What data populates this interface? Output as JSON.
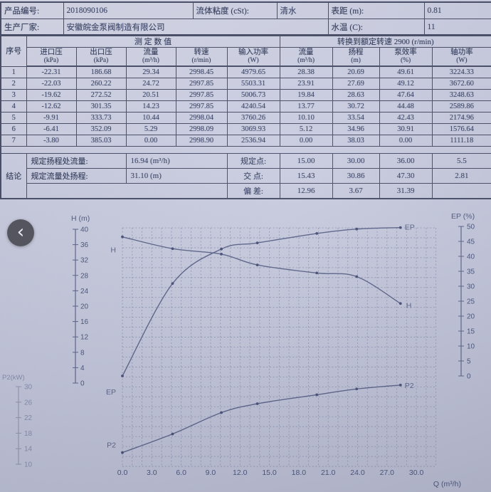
{
  "nav": {
    "back_label": "‹"
  },
  "info": {
    "r1": {
      "l1": "产品编号:",
      "v1": "2018090106",
      "l2": "流体粘度 (cSt):",
      "v2": "清水",
      "l3": "表距 (m):",
      "v3": "0.81"
    },
    "r2": {
      "l1": "生产厂家:",
      "v1": "安徽皖金泵阀制造有限公司",
      "l3": "水温 (C):",
      "v3": "11"
    }
  },
  "table": {
    "col_seq": "序号",
    "group_measured": "测  定  数  值",
    "group_converted": "转换到额定转速  2900 (r/min)",
    "headers": [
      {
        "name": "进口压",
        "unit": "(kPa)"
      },
      {
        "name": "出口压",
        "unit": "(kPa)"
      },
      {
        "name": "流量",
        "unit": "(m³/h)"
      },
      {
        "name": "转速",
        "unit": "(r/min)"
      },
      {
        "name": "输入功率",
        "unit": "(W)"
      },
      {
        "name": "流量",
        "unit": "(m³/h)"
      },
      {
        "name": "扬程",
        "unit": "(m)"
      },
      {
        "name": "泵效率",
        "unit": "(%)"
      },
      {
        "name": "轴功率",
        "unit": "(W)"
      }
    ],
    "rows": [
      [
        "1",
        "-22.31",
        "186.68",
        "29.34",
        "2998.45",
        "4979.65",
        "28.38",
        "20.69",
        "49.61",
        "3224.33"
      ],
      [
        "2",
        "-22.03",
        "260.22",
        "24.72",
        "2997.85",
        "5503.31",
        "23.91",
        "27.69",
        "49.12",
        "3672.60"
      ],
      [
        "3",
        "-19.62",
        "272.52",
        "20.51",
        "2997.85",
        "5006.73",
        "19.84",
        "28.63",
        "47.64",
        "3248.63"
      ],
      [
        "4",
        "-12.62",
        "301.35",
        "14.23",
        "2997.85",
        "4240.54",
        "13.77",
        "30.72",
        "44.48",
        "2589.86"
      ],
      [
        "5",
        "-9.91",
        "333.73",
        "10.44",
        "2998.04",
        "3760.26",
        "10.10",
        "33.54",
        "42.43",
        "2174.96"
      ],
      [
        "6",
        "-6.41",
        "352.09",
        "5.29",
        "2998.09",
        "3069.93",
        "5.12",
        "34.96",
        "30.91",
        "1576.64"
      ],
      [
        "7",
        "-3.80",
        "385.03",
        "0.00",
        "2998.90",
        "2536.94",
        "0.00",
        "38.03",
        "0.00",
        "1111.18"
      ]
    ]
  },
  "summary": {
    "side_label": "结论",
    "rows": [
      {
        "label": "规定扬程处流量:",
        "value": "16.94 (m³/h)",
        "point_label": "规定点:",
        "values": [
          "15.00",
          "30.00",
          "36.00",
          "5.5"
        ]
      },
      {
        "label": "规定流量处扬程:",
        "value": "31.10 (m)",
        "point_label": "交  点:",
        "values": [
          "15.43",
          "30.86",
          "47.30",
          "2.81"
        ]
      },
      {
        "label": "",
        "value": "",
        "point_label": "偏  差:",
        "values": [
          "12.96",
          "3.67",
          "31.39",
          ""
        ]
      }
    ]
  },
  "chart_data": {
    "type": "line",
    "title": "",
    "xlabel": "Q (m³/h)",
    "x_ticks": [
      "0.0",
      "3.0",
      "6.0",
      "9.0",
      "12.0",
      "15.0",
      "18.0",
      "21.0",
      "24.0",
      "27.0",
      "30.0"
    ],
    "xlim": [
      0,
      30
    ],
    "grid": true,
    "axes": {
      "H": {
        "label": "H (m)",
        "ticks": [
          "40",
          "36",
          "32",
          "28",
          "24",
          "20",
          "16",
          "12",
          "8",
          "4",
          "0"
        ],
        "range": [
          0,
          40
        ],
        "position": "left"
      },
      "EP": {
        "label": "EP (%)",
        "ticks": [
          "50",
          "45",
          "40",
          "35",
          "30",
          "25",
          "20",
          "15",
          "10",
          "5",
          "0"
        ],
        "range": [
          0,
          50
        ],
        "position": "right"
      },
      "P2": {
        "label": "P2(kW)",
        "ticks": [
          "30",
          "26",
          "22",
          "18",
          "14",
          "10"
        ],
        "range": [
          10,
          30
        ],
        "position": "left-lower"
      }
    },
    "series": [
      {
        "name": "H",
        "axis": "H",
        "points": [
          [
            0,
            38.03
          ],
          [
            5.12,
            34.96
          ],
          [
            10.1,
            33.54
          ],
          [
            13.77,
            30.72
          ],
          [
            19.84,
            28.63
          ],
          [
            23.91,
            27.69
          ],
          [
            28.38,
            20.69
          ]
        ]
      },
      {
        "name": "EP",
        "axis": "EP",
        "points": [
          [
            0,
            0
          ],
          [
            5.12,
            30.91
          ],
          [
            10.1,
            42.43
          ],
          [
            13.77,
            44.48
          ],
          [
            19.84,
            47.64
          ],
          [
            23.91,
            49.12
          ],
          [
            28.38,
            49.61
          ]
        ]
      },
      {
        "name": "P2",
        "axis": "P2",
        "points": [
          [
            0,
            13.0
          ],
          [
            5.12,
            17.8
          ],
          [
            10.1,
            23.3
          ],
          [
            13.77,
            25.6
          ],
          [
            19.84,
            27.9
          ],
          [
            23.91,
            29.4
          ],
          [
            28.38,
            30.4
          ]
        ]
      }
    ]
  }
}
